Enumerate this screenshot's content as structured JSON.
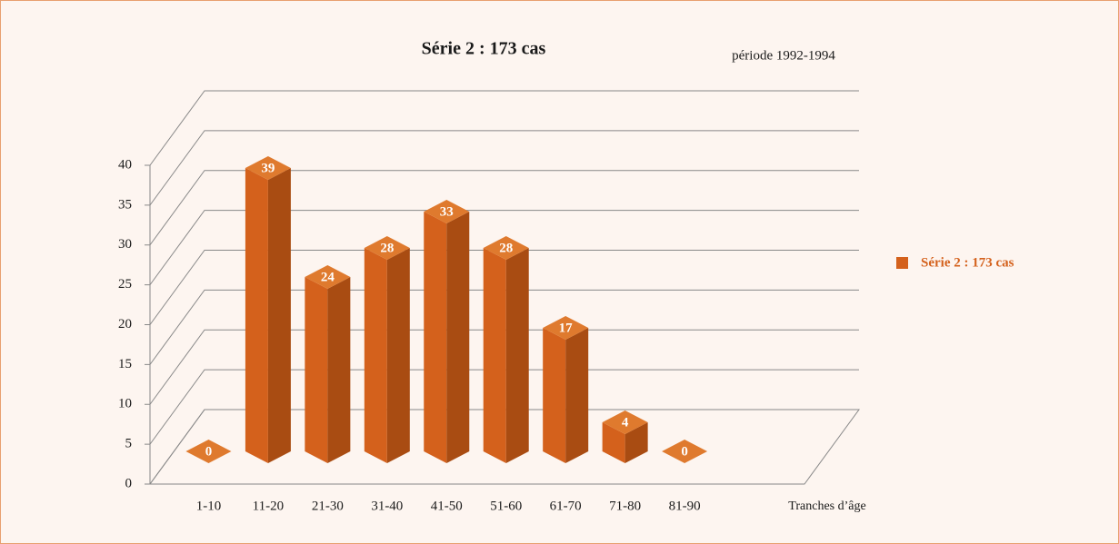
{
  "chart_data": {
    "type": "bar3d",
    "title": "Série 2 : 173 cas",
    "subtitle": "période 1992-1994",
    "x_label": "Tranches d’âge",
    "categories": [
      "1-10",
      "11-20",
      "21-30",
      "31-40",
      "41-50",
      "51-60",
      "61-70",
      "71-80",
      "81-90"
    ],
    "series": [
      {
        "name": "Série 2 : 173 cas",
        "color": "#d4611c",
        "values": [
          0,
          39,
          24,
          28,
          33,
          28,
          17,
          4,
          0
        ]
      }
    ],
    "ylim": [
      0,
      40
    ],
    "yticks": [
      0,
      5,
      10,
      15,
      20,
      25,
      30,
      35,
      40
    ],
    "grid": true,
    "legend": "right"
  }
}
